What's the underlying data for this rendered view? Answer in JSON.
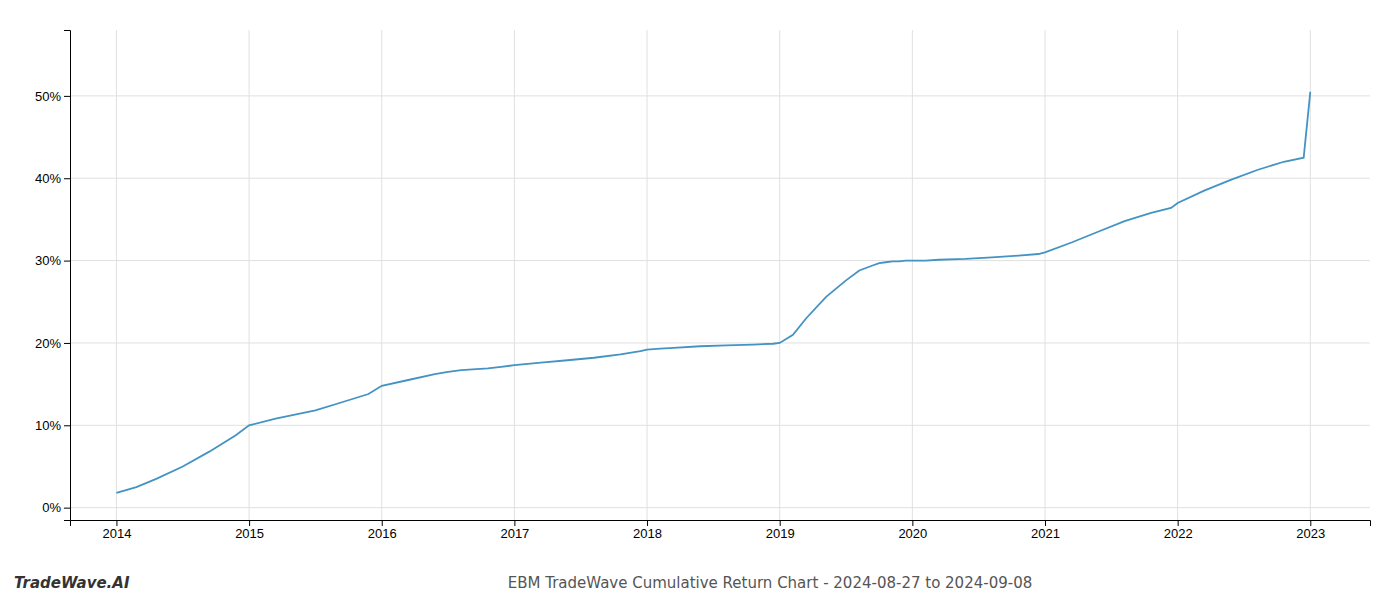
{
  "chart_data": {
    "type": "line",
    "title": "EBM TradeWave Cumulative Return Chart - 2024-08-27 to 2024-09-08",
    "annotations": [
      "TradeWave.AI"
    ],
    "color": "#4393c3",
    "grid": true,
    "x": [
      2014.0,
      2014.15,
      2014.3,
      2014.5,
      2014.7,
      2014.9,
      2015.0,
      2015.2,
      2015.5,
      2015.7,
      2015.9,
      2016.0,
      2016.2,
      2016.4,
      2016.5,
      2016.6,
      2016.8,
      2016.9,
      2017.0,
      2017.2,
      2017.4,
      2017.6,
      2017.8,
      2017.95,
      2018.0,
      2018.1,
      2018.2,
      2018.4,
      2018.6,
      2018.8,
      2018.95,
      2019.0,
      2019.1,
      2019.2,
      2019.35,
      2019.5,
      2019.6,
      2019.7,
      2019.75,
      2019.8,
      2019.85,
      2019.9,
      2019.95,
      2020.0,
      2020.1,
      2020.2,
      2020.4,
      2020.6,
      2020.8,
      2020.95,
      2021.0,
      2021.2,
      2021.4,
      2021.6,
      2021.8,
      2021.95,
      2022.0,
      2022.2,
      2022.4,
      2022.6,
      2022.8,
      2022.95,
      2023.0
    ],
    "values": [
      0.018,
      0.025,
      0.035,
      0.05,
      0.068,
      0.088,
      0.1,
      0.108,
      0.118,
      0.128,
      0.138,
      0.148,
      0.155,
      0.162,
      0.165,
      0.167,
      0.169,
      0.171,
      0.173,
      0.176,
      0.179,
      0.182,
      0.186,
      0.19,
      0.192,
      0.193,
      0.194,
      0.196,
      0.197,
      0.198,
      0.199,
      0.2,
      0.21,
      0.23,
      0.256,
      0.276,
      0.288,
      0.294,
      0.297,
      0.298,
      0.299,
      0.299,
      0.3,
      0.3,
      0.3,
      0.301,
      0.302,
      0.304,
      0.306,
      0.308,
      0.31,
      0.322,
      0.335,
      0.348,
      0.358,
      0.364,
      0.37,
      0.385,
      0.398,
      0.41,
      0.42,
      0.425,
      0.505
    ],
    "xlim": [
      2013.65,
      2023.45
    ],
    "ylim": [
      -0.015,
      0.58
    ],
    "xticks": [
      2014,
      2015,
      2016,
      2017,
      2018,
      2019,
      2020,
      2021,
      2022,
      2023
    ],
    "yticks": [
      {
        "value": 0.0,
        "label": "0%"
      },
      {
        "value": 0.1,
        "label": "10%"
      },
      {
        "value": 0.2,
        "label": "20%"
      },
      {
        "value": 0.3,
        "label": "30%"
      },
      {
        "value": 0.4,
        "label": "40%"
      },
      {
        "value": 0.5,
        "label": "50%"
      }
    ]
  }
}
